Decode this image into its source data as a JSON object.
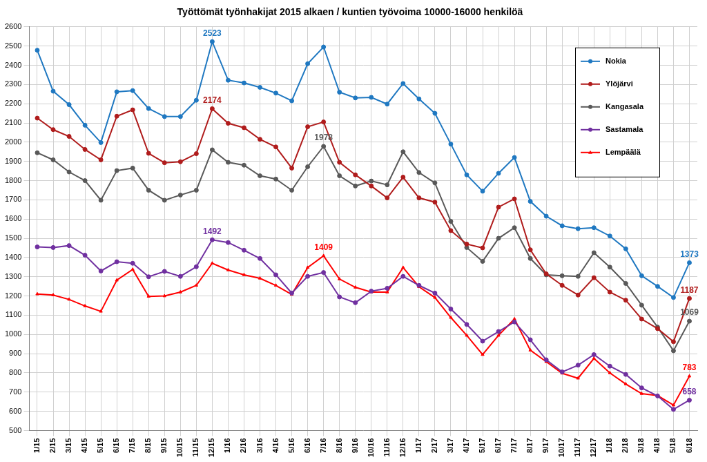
{
  "chart_data": {
    "type": "line",
    "title": "Työttömät työnhakijat 2015 alkaen / kuntien työvoima 10000-16000 henkilöä",
    "categories": [
      "1/15",
      "2/15",
      "3/15",
      "4/15",
      "5/15",
      "6/15",
      "7/15",
      "8/15",
      "9/15",
      "10/15",
      "11/15",
      "12/15",
      "1/16",
      "2/16",
      "3/16",
      "4/16",
      "5/16",
      "6/16",
      "7/16",
      "8/16",
      "9/16",
      "10/16",
      "11/16",
      "12/16",
      "1/17",
      "2/17",
      "3/17",
      "4/17",
      "5/17",
      "6/17",
      "7/17",
      "8/17",
      "9/17",
      "10/17",
      "11/17",
      "12/17",
      "1/18",
      "2/18",
      "3/18",
      "4/18",
      "5/18",
      "6/18"
    ],
    "series": [
      {
        "name": "Nokia",
        "color": "#1f78c1",
        "marker": "circle",
        "line_style": "solid",
        "values": [
          2478,
          2265,
          2195,
          2088,
          1998,
          2262,
          2268,
          2175,
          2133,
          2133,
          2218,
          2523,
          2322,
          2308,
          2285,
          2255,
          2215,
          2408,
          2495,
          2260,
          2230,
          2233,
          2198,
          2305,
          2225,
          2150,
          1990,
          1830,
          1745,
          1838,
          1920,
          1692,
          1615,
          1565,
          1550,
          1555,
          1512,
          1445,
          1305,
          1250,
          1192,
          1373
        ],
        "value_labels": [
          null,
          null,
          null,
          null,
          null,
          null,
          null,
          null,
          null,
          null,
          null,
          "2523",
          null,
          null,
          null,
          null,
          null,
          null,
          null,
          null,
          null,
          null,
          null,
          null,
          null,
          null,
          null,
          null,
          null,
          null,
          null,
          null,
          null,
          null,
          null,
          null,
          null,
          null,
          null,
          null,
          null,
          "1373"
        ]
      },
      {
        "name": "Ylöjärvi",
        "color": "#b01c1c",
        "marker": "circle",
        "line_style": "solid",
        "values": [
          2125,
          2065,
          2030,
          1962,
          1908,
          2135,
          2168,
          1942,
          1893,
          1898,
          1940,
          2174,
          2098,
          2075,
          2015,
          1975,
          1865,
          2080,
          2105,
          1895,
          1830,
          1772,
          1710,
          1818,
          1710,
          1688,
          1540,
          1470,
          1450,
          1662,
          1705,
          1440,
          1315,
          1255,
          1205,
          1295,
          1220,
          1178,
          1080,
          1030,
          962,
          1187
        ],
        "value_labels": [
          null,
          null,
          null,
          null,
          null,
          null,
          null,
          null,
          null,
          null,
          null,
          "2174",
          null,
          null,
          null,
          null,
          null,
          null,
          null,
          null,
          null,
          null,
          null,
          null,
          null,
          null,
          null,
          null,
          null,
          null,
          null,
          null,
          null,
          null,
          null,
          null,
          null,
          null,
          null,
          null,
          null,
          "1187"
        ]
      },
      {
        "name": "Kangasala",
        "color": "#595959",
        "marker": "circle",
        "line_style": "solid",
        "values": [
          1945,
          1908,
          1845,
          1800,
          1698,
          1852,
          1865,
          1750,
          1698,
          1725,
          1750,
          1960,
          1895,
          1880,
          1825,
          1808,
          1750,
          1872,
          1978,
          1825,
          1772,
          1798,
          1778,
          1950,
          1842,
          1788,
          1588,
          1452,
          1380,
          1500,
          1555,
          1395,
          1310,
          1305,
          1302,
          1425,
          1350,
          1265,
          1152,
          1038,
          915,
          1069
        ],
        "value_labels": [
          null,
          null,
          null,
          null,
          null,
          null,
          null,
          null,
          null,
          null,
          null,
          null,
          null,
          null,
          null,
          null,
          null,
          null,
          "1978",
          null,
          null,
          null,
          null,
          null,
          null,
          null,
          null,
          null,
          null,
          null,
          null,
          null,
          null,
          null,
          null,
          null,
          null,
          null,
          null,
          null,
          null,
          "1069"
        ]
      },
      {
        "name": "Sastamala",
        "color": "#7030a0",
        "marker": "circle",
        "line_style": "solid",
        "values": [
          1455,
          1452,
          1462,
          1412,
          1330,
          1378,
          1370,
          1300,
          1328,
          1302,
          1352,
          1492,
          1478,
          1438,
          1395,
          1310,
          1215,
          1302,
          1322,
          1195,
          1165,
          1225,
          1240,
          1302,
          1255,
          1215,
          1132,
          1052,
          965,
          1015,
          1065,
          972,
          868,
          805,
          840,
          895,
          835,
          792,
          722,
          680,
          610,
          658
        ],
        "value_labels": [
          null,
          null,
          null,
          null,
          null,
          null,
          null,
          null,
          null,
          null,
          null,
          "1492",
          null,
          null,
          null,
          null,
          null,
          null,
          null,
          null,
          null,
          null,
          null,
          null,
          null,
          null,
          null,
          null,
          null,
          null,
          null,
          null,
          null,
          null,
          null,
          null,
          null,
          null,
          null,
          null,
          null,
          "658"
        ]
      },
      {
        "name": "Lempäälä",
        "color": "#ff0000",
        "marker": "triangle",
        "line_style": "solid",
        "values": [
          1210,
          1205,
          1182,
          1148,
          1120,
          1282,
          1338,
          1198,
          1200,
          1220,
          1255,
          1370,
          1335,
          1310,
          1292,
          1255,
          1208,
          1348,
          1409,
          1288,
          1245,
          1220,
          1220,
          1348,
          1248,
          1192,
          1088,
          995,
          895,
          995,
          1080,
          918,
          858,
          798,
          772,
          875,
          800,
          742,
          692,
          682,
          632,
          783
        ],
        "value_labels": [
          null,
          null,
          null,
          null,
          null,
          null,
          null,
          null,
          null,
          null,
          null,
          null,
          null,
          null,
          null,
          null,
          null,
          null,
          "1409",
          null,
          null,
          null,
          null,
          null,
          null,
          null,
          null,
          null,
          null,
          null,
          null,
          null,
          null,
          null,
          null,
          null,
          null,
          null,
          null,
          null,
          null,
          "783"
        ]
      }
    ],
    "ylim": [
      500,
      2600
    ],
    "yticks": [
      500,
      600,
      700,
      800,
      900,
      1000,
      1100,
      1200,
      1300,
      1400,
      1500,
      1600,
      1700,
      1800,
      1900,
      2000,
      2100,
      2200,
      2300,
      2400,
      2500,
      2600
    ],
    "grid": true,
    "legend": "top-right",
    "data_labels": true
  }
}
